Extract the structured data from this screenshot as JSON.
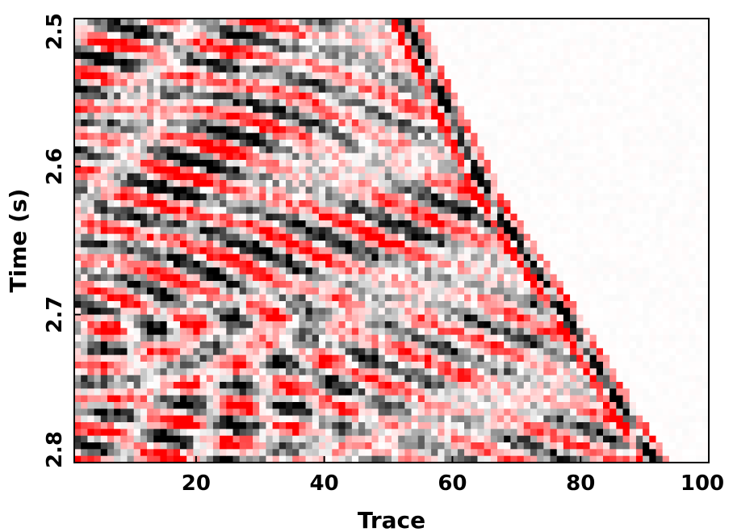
{
  "chart_data": {
    "type": "heatmap",
    "title": "",
    "xlabel": "Trace",
    "ylabel": "Time (s)",
    "xlim": [
      1,
      100
    ],
    "ylim": [
      2.5,
      2.8
    ],
    "y_inverted": true,
    "x_ticks": [
      20,
      40,
      60,
      80,
      100
    ],
    "x_tick_labels": [
      "20",
      "40",
      "60",
      "80",
      "100"
    ],
    "y_ticks": [
      2.5,
      2.6,
      2.7,
      2.8
    ],
    "y_tick_labels": [
      "2.5",
      "2.6",
      "2.7",
      "2.8"
    ],
    "colormap": {
      "negative": "#ff0000",
      "zero": "#ffffff",
      "positive": "#000000"
    },
    "value_range": [
      -1,
      1
    ],
    "first_arrival": {
      "description": "Linear first-arrival boundary; samples later in trace than this are near zero.",
      "points": [
        {
          "trace": 53,
          "time": 2.5
        },
        {
          "trace": 66,
          "time": 2.62
        },
        {
          "trace": 78,
          "time": 2.7
        },
        {
          "trace": 92,
          "time": 2.8
        }
      ]
    },
    "grid": false
  }
}
